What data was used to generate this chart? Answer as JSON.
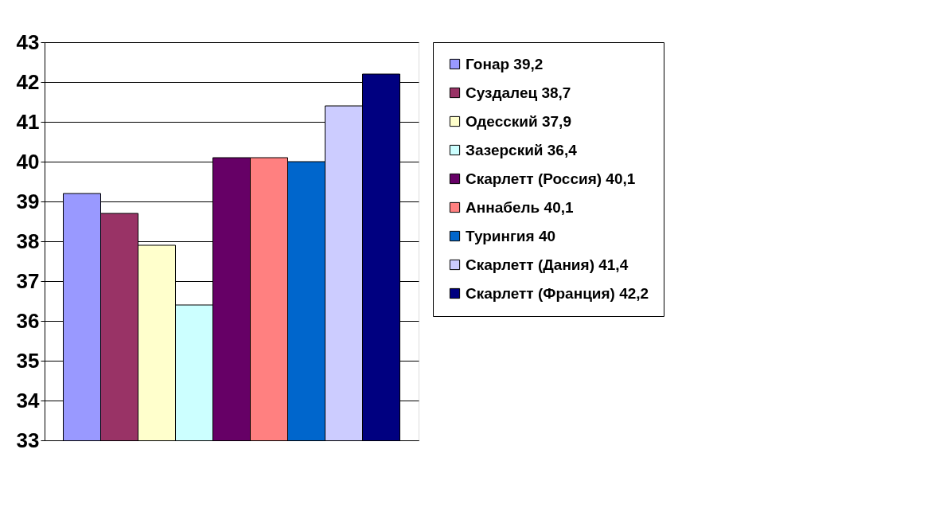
{
  "chart_data": {
    "type": "bar",
    "categories": [
      null
    ],
    "series": [
      {
        "name": "Гонар 39,2",
        "color": "#9999ff",
        "values": [
          39.2
        ]
      },
      {
        "name": "Суздалец 38,7",
        "color": "#993366",
        "values": [
          38.7
        ]
      },
      {
        "name": "Одесский 37,9",
        "color": "#ffffcc",
        "values": [
          37.9
        ]
      },
      {
        "name": "Зазерский 36,4",
        "color": "#ccffff",
        "values": [
          36.4
        ]
      },
      {
        "name": "Скарлетт (Россия) 40,1",
        "color": "#660066",
        "values": [
          40.1
        ]
      },
      {
        "name": "Аннабель 40,1",
        "color": "#ff8080",
        "values": [
          40.1
        ]
      },
      {
        "name": "Турингия 40",
        "color": "#0066cc",
        "values": [
          40
        ]
      },
      {
        "name": "Скарлетт (Дания) 41,4",
        "color": "#ccccff",
        "values": [
          41.4
        ]
      },
      {
        "name": "Скарлетт (Франция) 42,2",
        "color": "#000080",
        "values": [
          42.2
        ]
      }
    ],
    "ylim": [
      33,
      43
    ],
    "yticks": [
      33,
      34,
      35,
      36,
      37,
      38,
      39,
      40,
      41,
      42,
      43
    ],
    "grid": "y",
    "legend": "right",
    "tick_labels": "y"
  }
}
